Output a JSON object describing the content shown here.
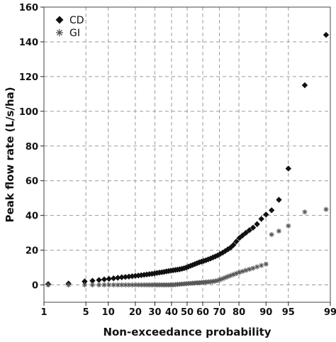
{
  "chart_data": {
    "type": "scatter",
    "xlabel": "Non-exceedance probability",
    "ylabel": "Peak flow rate (L/s/ha)",
    "x_scale": "normal-probability",
    "xlim": [
      1,
      99
    ],
    "ylim": [
      -10,
      160
    ],
    "grid": true,
    "legend_position": "top-left",
    "x_ticks": [
      {
        "value": 1,
        "label": "1"
      },
      {
        "value": 5,
        "label": "5"
      },
      {
        "value": 10,
        "label": "10"
      },
      {
        "value": 20,
        "label": "20"
      },
      {
        "value": 30,
        "label": "30"
      },
      {
        "value": 40,
        "label": "40"
      },
      {
        "value": 50,
        "label": "50"
      },
      {
        "value": 60,
        "label": "60"
      },
      {
        "value": 70,
        "label": "70"
      },
      {
        "value": 80,
        "label": "80"
      },
      {
        "value": 90,
        "label": "90"
      },
      {
        "value": 95,
        "label": "95"
      },
      {
        "value": 99,
        "label": "99"
      }
    ],
    "y_ticks": [
      {
        "value": 0,
        "label": "0"
      },
      {
        "value": 20,
        "label": "20"
      },
      {
        "value": 40,
        "label": "40"
      },
      {
        "value": 60,
        "label": "60"
      },
      {
        "value": 80,
        "label": "80"
      },
      {
        "value": 100,
        "label": "100"
      },
      {
        "value": 120,
        "label": "120"
      },
      {
        "value": 140,
        "label": "140"
      },
      {
        "value": 160,
        "label": "160"
      }
    ],
    "series": [
      {
        "name": "CD",
        "marker": "diamond",
        "color": "#111111",
        "x": [
          1.2,
          2.7,
          4.8,
          6.2,
          7.6,
          8.9,
          10.2,
          11.6,
          13.0,
          14.4,
          15.8,
          17.2,
          18.6,
          20.0,
          21.4,
          22.8,
          24.2,
          25.6,
          27.0,
          28.4,
          29.8,
          31.2,
          32.6,
          34.0,
          35.4,
          36.8,
          38.2,
          39.6,
          41.0,
          42.4,
          43.8,
          45.2,
          46.6,
          48.0,
          49.4,
          50.8,
          52.2,
          53.6,
          55.0,
          56.4,
          57.8,
          59.2,
          60.6,
          62.0,
          63.4,
          64.8,
          66.2,
          67.6,
          69.0,
          70.4,
          71.8,
          73.2,
          74.6,
          76.0,
          77.4,
          78.8,
          80.2,
          81.6,
          83.0,
          84.4,
          85.8,
          87.2,
          88.6,
          90.0,
          91.5,
          93.2,
          95.0,
          97.2,
          98.8
        ],
        "y": [
          0.5,
          0.8,
          2.0,
          2.4,
          2.8,
          3.2,
          3.5,
          3.8,
          4.1,
          4.4,
          4.6,
          4.8,
          5.0,
          5.2,
          5.4,
          5.6,
          5.8,
          6.0,
          6.2,
          6.4,
          6.6,
          6.9,
          7.1,
          7.3,
          7.5,
          7.8,
          8.0,
          8.2,
          8.4,
          8.6,
          8.8,
          9.0,
          9.3,
          9.6,
          10.0,
          10.5,
          11.0,
          11.5,
          12.0,
          12.5,
          13.0,
          13.4,
          13.8,
          14.2,
          14.7,
          15.2,
          15.8,
          16.4,
          17.0,
          17.8,
          18.6,
          19.5,
          20.5,
          21.5,
          23.0,
          25.0,
          27.0,
          28.5,
          30.0,
          31.5,
          33.0,
          35.0,
          38.0,
          40.5,
          43.0,
          49.0,
          67.0,
          115.0,
          144.0
        ]
      },
      {
        "name": "GI",
        "marker": "asterisk",
        "color": "#555555",
        "x": [
          1.2,
          2.7,
          4.8,
          6.2,
          7.6,
          8.9,
          10.2,
          11.6,
          13.0,
          14.4,
          15.8,
          17.2,
          18.6,
          20.0,
          21.4,
          22.8,
          24.2,
          25.6,
          27.0,
          28.4,
          29.8,
          31.2,
          32.6,
          34.0,
          35.4,
          36.8,
          38.2,
          39.6,
          41.0,
          42.4,
          43.8,
          45.2,
          46.6,
          48.0,
          49.4,
          50.8,
          52.2,
          53.6,
          55.0,
          56.4,
          57.8,
          59.2,
          60.6,
          62.0,
          63.4,
          64.8,
          66.2,
          67.6,
          69.0,
          70.4,
          71.8,
          73.2,
          74.6,
          76.0,
          77.4,
          78.8,
          80.2,
          81.6,
          83.0,
          84.4,
          85.8,
          87.2,
          88.6,
          90.0,
          91.5,
          93.2,
          95.0,
          97.2,
          98.8
        ],
        "y": [
          0.0,
          0.0,
          0.0,
          0.0,
          0.0,
          0.0,
          0.0,
          0.0,
          0.0,
          0.0,
          0.0,
          0.0,
          0.0,
          0.0,
          0.0,
          0.0,
          0.0,
          0.0,
          0.0,
          0.0,
          0.0,
          0.0,
          0.0,
          0.0,
          0.0,
          0.0,
          0.0,
          0.0,
          0.0,
          0.2,
          0.3,
          0.4,
          0.5,
          0.6,
          0.7,
          0.8,
          0.9,
          1.0,
          1.1,
          1.2,
          1.3,
          1.4,
          1.5,
          1.6,
          1.7,
          1.8,
          2.0,
          2.2,
          2.5,
          3.0,
          3.6,
          4.2,
          4.8,
          5.4,
          6.0,
          6.6,
          7.2,
          7.8,
          8.4,
          9.0,
          9.6,
          10.4,
          11.2,
          12.0,
          29.0,
          31.0,
          34.0,
          42.0,
          43.5
        ]
      }
    ]
  }
}
